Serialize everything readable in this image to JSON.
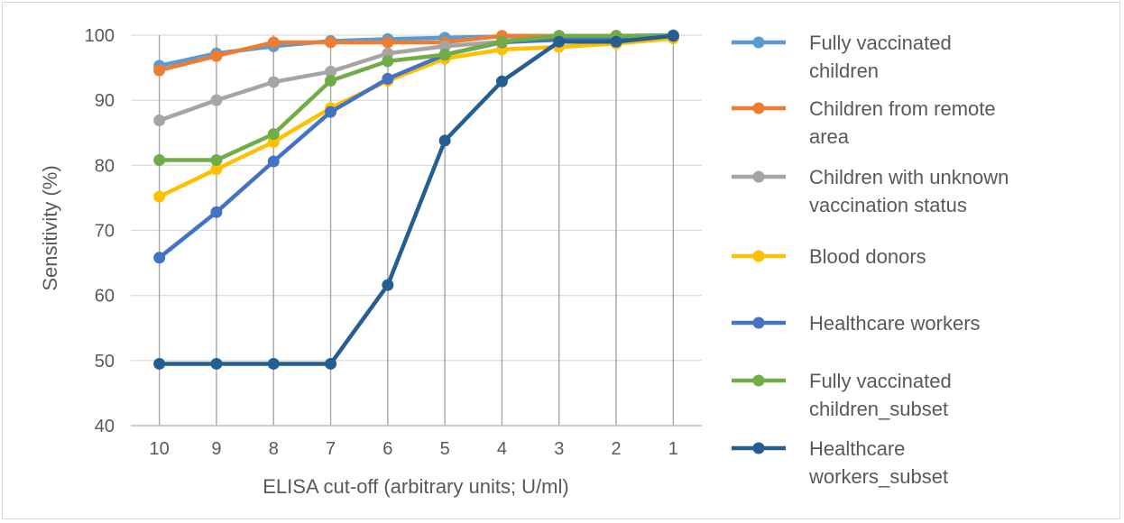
{
  "chart_data": {
    "type": "line",
    "title": "",
    "xlabel": "ELISA cut-off (arbitrary units; U/ml)",
    "ylabel": "Sensitivity (%)",
    "ylim": [
      40,
      100
    ],
    "yticks": [
      40,
      50,
      60,
      70,
      80,
      90,
      100
    ],
    "categories": [
      "10",
      "9",
      "8",
      "7",
      "6",
      "5",
      "4",
      "3",
      "2",
      "1"
    ],
    "grid": "vertical and horizontal",
    "legend": "right",
    "series": [
      {
        "name": "Fully vaccinated children",
        "color": "#5b9bd5",
        "values": [
          95.3,
          97.2,
          98.3,
          99.1,
          99.4,
          99.6,
          99.8,
          99.9,
          99.9,
          100
        ]
      },
      {
        "name": "Children from remote area",
        "color": "#ed7d31",
        "values": [
          94.6,
          96.8,
          98.9,
          98.9,
          98.9,
          98.9,
          99.9,
          99.9,
          99.9,
          99.9
        ]
      },
      {
        "name": "Children with unknown vaccination status",
        "color": "#a5a5a5",
        "values": [
          86.9,
          90.0,
          92.8,
          94.4,
          97.2,
          98.3,
          99.0,
          99.6,
          99.7,
          99.8
        ]
      },
      {
        "name": "Blood donors",
        "color": "#ffc000",
        "values": [
          75.2,
          79.4,
          83.6,
          88.8,
          93.0,
          96.4,
          97.8,
          98.2,
          98.7,
          99.5
        ]
      },
      {
        "name": "Healthcare workers",
        "color": "#4472c4",
        "values": [
          65.8,
          72.8,
          80.6,
          88.2,
          93.3,
          97.0,
          98.9,
          99.3,
          99.4,
          99.9
        ]
      },
      {
        "name": "Fully vaccinated children_subset",
        "color": "#70ad47",
        "values": [
          80.8,
          80.8,
          84.8,
          93.0,
          96.0,
          97.0,
          99.0,
          99.9,
          99.9,
          99.9
        ]
      },
      {
        "name": "Healthcare workers_subset",
        "color": "#255e91",
        "values": [
          49.5,
          49.5,
          49.5,
          49.5,
          61.6,
          83.8,
          92.9,
          99.0,
          99.0,
          99.9
        ]
      }
    ]
  }
}
